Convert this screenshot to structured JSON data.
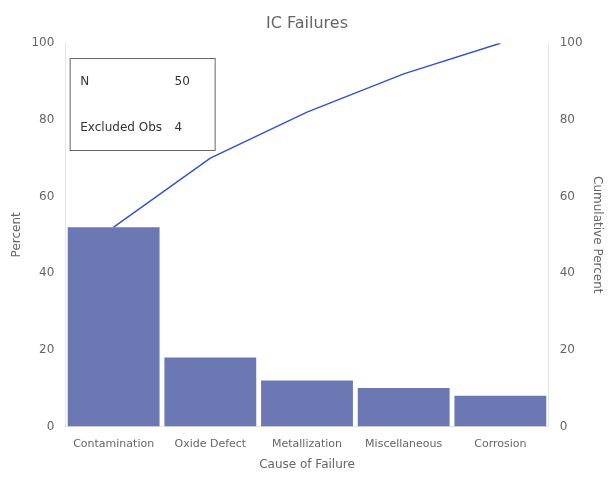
{
  "chart_data": {
    "type": "bar",
    "title": "IC Failures",
    "categories": [
      "Contamination",
      "Oxide Defect",
      "Metallization",
      "Miscellaneous",
      "Corrosion"
    ],
    "series": [
      {
        "type": "bar",
        "color": "#6b78b4",
        "values": [
          52.0,
          18.0,
          12.0,
          10.0,
          8.0
        ]
      },
      {
        "type": "line",
        "color": "#3355cc",
        "axis": "y2",
        "values": [
          52.0,
          70.0,
          82.0,
          92.0,
          100.0
        ]
      }
    ],
    "xlabel": "Cause of Failure",
    "ylabel": "Percent",
    "y2label": "Cumulative Percent",
    "ylim": [
      0,
      100
    ],
    "yticks": [
      0,
      20,
      40,
      60,
      80,
      100
    ],
    "y2lim": [
      0,
      100
    ],
    "y2ticks": [
      0,
      20,
      40,
      60,
      80,
      100
    ],
    "annotations": [
      {
        "label": "N",
        "value": 50
      },
      {
        "label": "Excluded Obs",
        "value": 4
      }
    ],
    "grid": false
  }
}
